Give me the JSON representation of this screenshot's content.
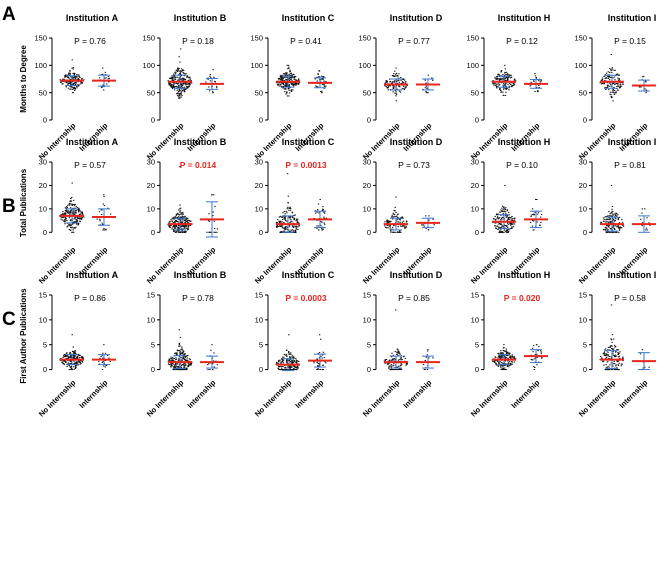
{
  "colors": {
    "points": "#111111",
    "error_bar": "#3a78d0",
    "median": "#e8261d",
    "significant": "#e8261d"
  },
  "categories": [
    "No Internship",
    "Internship"
  ],
  "chart_data": [
    {
      "type": "scatter",
      "panel": "A",
      "ylabel": "Months to Degree",
      "ylim": [
        0,
        150
      ],
      "yticks": [
        "0",
        "50",
        "100",
        "150"
      ],
      "subplots": [
        {
          "title": "Institution A",
          "p": "P = 0.76",
          "significant": false,
          "groups": [
            {
              "name": "No Internship",
              "mean": 72,
              "sd": 9,
              "min": 50,
              "max": 110,
              "n": 170
            },
            {
              "name": "Internship",
              "mean": 72,
              "sd": 10,
              "min": 55,
              "max": 95,
              "n": 25
            }
          ]
        },
        {
          "title": "Institution B",
          "p": "P = 0.18",
          "significant": false,
          "groups": [
            {
              "name": "No Internship",
              "mean": 70,
              "sd": 12,
              "min": 40,
              "max": 130,
              "n": 250
            },
            {
              "name": "Internship",
              "mean": 66,
              "sd": 10,
              "min": 50,
              "max": 92,
              "n": 25
            }
          ]
        },
        {
          "title": "Institution C",
          "p": "P = 0.41",
          "significant": false,
          "groups": [
            {
              "name": "No Internship",
              "mean": 70,
              "sd": 10,
              "min": 44,
              "max": 100,
              "n": 230
            },
            {
              "name": "Internship",
              "mean": 68,
              "sd": 9,
              "min": 50,
              "max": 90,
              "n": 40
            }
          ]
        },
        {
          "title": "Institution D",
          "p": "P = 0.77",
          "significant": false,
          "groups": [
            {
              "name": "No Internship",
              "mean": 65,
              "sd": 10,
              "min": 35,
              "max": 95,
              "n": 120
            },
            {
              "name": "Internship",
              "mean": 65,
              "sd": 10,
              "min": 50,
              "max": 82,
              "n": 15
            }
          ]
        },
        {
          "title": "Institution H",
          "p": "P = 0.12",
          "significant": false,
          "groups": [
            {
              "name": "No Internship",
              "mean": 70,
              "sd": 10,
              "min": 45,
              "max": 100,
              "n": 160
            },
            {
              "name": "Internship",
              "mean": 66,
              "sd": 8,
              "min": 52,
              "max": 85,
              "n": 25
            }
          ]
        },
        {
          "title": "Institution I",
          "p": "P = 0.15",
          "significant": false,
          "groups": [
            {
              "name": "No Internship",
              "mean": 70,
              "sd": 12,
              "min": 35,
              "max": 120,
              "n": 140
            },
            {
              "name": "Internship",
              "mean": 63,
              "sd": 10,
              "min": 50,
              "max": 80,
              "n": 12
            }
          ]
        }
      ]
    },
    {
      "type": "scatter",
      "panel": "B",
      "ylabel": "Total Publications",
      "ylim": [
        -5,
        30
      ],
      "yticks": [
        "0",
        "10",
        "20",
        "30"
      ],
      "subplots": [
        {
          "title": "Institution A",
          "p": "P = 0.57",
          "significant": false,
          "groups": [
            {
              "name": "No Internship",
              "mean": 7,
              "sd": 3,
              "min": 0,
              "max": 21,
              "n": 200
            },
            {
              "name": "Internship",
              "mean": 6.5,
              "sd": 3.5,
              "min": 1,
              "max": 16,
              "n": 25
            }
          ]
        },
        {
          "title": "Institution B",
          "p": "P = 0.014",
          "significant": true,
          "groups": [
            {
              "name": "No Internship",
              "mean": 3.5,
              "sd": 2.5,
              "min": 0,
              "max": 28,
              "n": 250
            },
            {
              "name": "Internship",
              "mean": 5.5,
              "sd": 7.5,
              "min": 0,
              "max": 16,
              "n": 20
            }
          ]
        },
        {
          "title": "Institution C",
          "p": "P = 0.0013",
          "significant": true,
          "groups": [
            {
              "name": "No Internship",
              "mean": 3.5,
              "sd": 3.5,
              "min": 0,
              "max": 25,
              "n": 200
            },
            {
              "name": "Internship",
              "mean": 5.5,
              "sd": 3.5,
              "min": 1,
              "max": 14,
              "n": 40
            }
          ]
        },
        {
          "title": "Institution D",
          "p": "P = 0.73",
          "significant": false,
          "groups": [
            {
              "name": "No Internship",
              "mean": 3.5,
              "sd": 2.5,
              "min": 0,
              "max": 15,
              "n": 120
            },
            {
              "name": "Internship",
              "mean": 4,
              "sd": 2,
              "min": 1,
              "max": 7,
              "n": 15
            }
          ]
        },
        {
          "title": "Institution H",
          "p": "P = 0.10",
          "significant": false,
          "groups": [
            {
              "name": "No Internship",
              "mean": 4.5,
              "sd": 3,
              "min": 0,
              "max": 20,
              "n": 180
            },
            {
              "name": "Internship",
              "mean": 5.5,
              "sd": 3.5,
              "min": 1,
              "max": 14,
              "n": 30
            }
          ]
        },
        {
          "title": "Institution I",
          "p": "P = 0.81",
          "significant": false,
          "groups": [
            {
              "name": "No Internship",
              "mean": 3.5,
              "sd": 3,
              "min": 0,
              "max": 20,
              "n": 150
            },
            {
              "name": "Internship",
              "mean": 3.5,
              "sd": 3.5,
              "min": 1,
              "max": 10,
              "n": 12
            }
          ]
        }
      ]
    },
    {
      "type": "scatter",
      "panel": "C",
      "ylabel": "First Author Publications",
      "ylim": [
        -1.5,
        15
      ],
      "yticks": [
        "0",
        "5",
        "10",
        "15"
      ],
      "subplots": [
        {
          "title": "Institution A",
          "p": "P = 0.86",
          "significant": false,
          "groups": [
            {
              "name": "No Internship",
              "mean": 2,
              "sd": 1,
              "min": 0,
              "max": 7,
              "n": 200
            },
            {
              "name": "Internship",
              "mean": 2,
              "sd": 1,
              "min": 0,
              "max": 5,
              "n": 25
            }
          ]
        },
        {
          "title": "Institution B",
          "p": "P = 0.78",
          "significant": false,
          "groups": [
            {
              "name": "No Internship",
              "mean": 1.5,
              "sd": 1.3,
              "min": 0,
              "max": 8,
              "n": 250
            },
            {
              "name": "Internship",
              "mean": 1.5,
              "sd": 1.2,
              "min": 0,
              "max": 5,
              "n": 20
            }
          ]
        },
        {
          "title": "Institution C",
          "p": "P = 0.0003",
          "significant": true,
          "groups": [
            {
              "name": "No Internship",
              "mean": 1,
              "sd": 1.2,
              "min": 0,
              "max": 7,
              "n": 200
            },
            {
              "name": "Internship",
              "mean": 1.8,
              "sd": 1.3,
              "min": 0,
              "max": 7,
              "n": 40
            }
          ]
        },
        {
          "title": "Institution D",
          "p": "P = 0.85",
          "significant": false,
          "groups": [
            {
              "name": "No Internship",
              "mean": 1.5,
              "sd": 1.2,
              "min": 0,
              "max": 12,
              "n": 120
            },
            {
              "name": "Internship",
              "mean": 1.5,
              "sd": 1.2,
              "min": 0,
              "max": 4,
              "n": 15
            }
          ]
        },
        {
          "title": "Institution H",
          "p": "P = 0.020",
          "significant": true,
          "groups": [
            {
              "name": "No Internship",
              "mean": 2,
              "sd": 1,
              "min": 0,
              "max": 5,
              "n": 180
            },
            {
              "name": "Internship",
              "mean": 2.7,
              "sd": 1.3,
              "min": 0,
              "max": 5,
              "n": 30
            }
          ]
        },
        {
          "title": "Institution I",
          "p": "P = 0.58",
          "significant": false,
          "groups": [
            {
              "name": "No Internship",
              "mean": 2,
              "sd": 1.8,
              "min": 0,
              "max": 13,
              "n": 150
            },
            {
              "name": "Internship",
              "mean": 1.7,
              "sd": 1.7,
              "min": 0,
              "max": 4,
              "n": 12
            }
          ]
        }
      ]
    }
  ]
}
